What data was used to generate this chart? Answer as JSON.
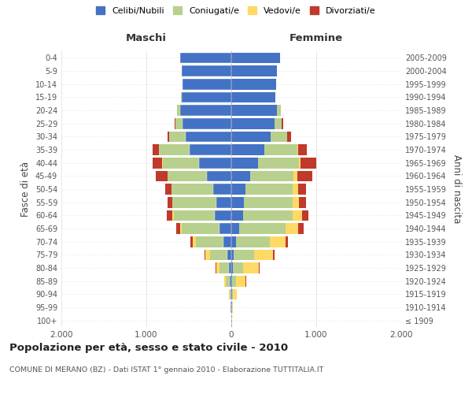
{
  "age_groups": [
    "100+",
    "95-99",
    "90-94",
    "85-89",
    "80-84",
    "75-79",
    "70-74",
    "65-69",
    "60-64",
    "55-59",
    "50-54",
    "45-49",
    "40-44",
    "35-39",
    "30-34",
    "25-29",
    "20-24",
    "15-19",
    "10-14",
    "5-9",
    "0-4"
  ],
  "birth_years": [
    "≤ 1909",
    "1910-1914",
    "1915-1919",
    "1920-1924",
    "1925-1929",
    "1930-1934",
    "1935-1939",
    "1940-1944",
    "1945-1949",
    "1950-1954",
    "1955-1959",
    "1960-1964",
    "1965-1969",
    "1970-1974",
    "1975-1979",
    "1980-1984",
    "1985-1989",
    "1990-1994",
    "1995-1999",
    "2000-2004",
    "2005-2009"
  ],
  "males": {
    "celibi": [
      3,
      5,
      10,
      20,
      30,
      50,
      90,
      140,
      190,
      180,
      210,
      290,
      380,
      490,
      540,
      570,
      600,
      580,
      570,
      580,
      600
    ],
    "coniugati": [
      1,
      4,
      12,
      45,
      110,
      200,
      330,
      440,
      490,
      510,
      490,
      460,
      430,
      360,
      190,
      90,
      40,
      8,
      4,
      1,
      1
    ],
    "vedovi": [
      0,
      2,
      5,
      18,
      35,
      55,
      35,
      22,
      12,
      6,
      3,
      2,
      1,
      0,
      0,
      0,
      0,
      0,
      0,
      0,
      0
    ],
    "divorziati": [
      0,
      1,
      2,
      4,
      6,
      12,
      22,
      50,
      65,
      58,
      75,
      140,
      115,
      75,
      22,
      6,
      2,
      0,
      0,
      0,
      0
    ]
  },
  "females": {
    "nubili": [
      2,
      3,
      8,
      12,
      18,
      32,
      52,
      95,
      135,
      145,
      165,
      225,
      315,
      385,
      460,
      510,
      540,
      515,
      525,
      540,
      570
    ],
    "coniugate": [
      1,
      4,
      14,
      48,
      125,
      240,
      400,
      540,
      590,
      580,
      560,
      510,
      480,
      390,
      195,
      85,
      40,
      8,
      3,
      1,
      1
    ],
    "vedove": [
      2,
      12,
      45,
      110,
      180,
      220,
      185,
      155,
      105,
      72,
      62,
      42,
      22,
      10,
      5,
      2,
      1,
      0,
      0,
      0,
      0
    ],
    "divorziate": [
      0,
      1,
      2,
      5,
      8,
      16,
      32,
      62,
      82,
      82,
      92,
      175,
      185,
      105,
      42,
      10,
      3,
      0,
      0,
      0,
      0
    ]
  },
  "colors": {
    "celibi_nubili": "#4472c4",
    "coniugati": "#b8d08d",
    "vedovi": "#ffd966",
    "divorziati": "#c0392b"
  },
  "title": "Popolazione per età, sesso e stato civile - 2010",
  "subtitle": "COMUNE DI MERANO (BZ) - Dati ISTAT 1° gennaio 2010 - Elaborazione TUTTITALIA.IT",
  "xlabel_left": "Maschi",
  "xlabel_right": "Femmine",
  "ylabel_left": "Fasce di età",
  "ylabel_right": "Anni di nascita",
  "xlim": 2000,
  "background_color": "#ffffff",
  "grid_color": "#cccccc"
}
